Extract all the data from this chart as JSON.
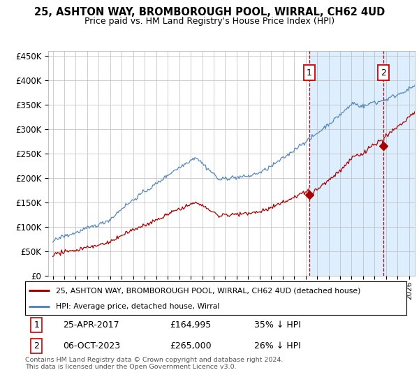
{
  "title": "25, ASHTON WAY, BROMBOROUGH POOL, WIRRAL, CH62 4UD",
  "subtitle": "Price paid vs. HM Land Registry's House Price Index (HPI)",
  "ylim": [
    0,
    460000
  ],
  "yticks": [
    0,
    50000,
    100000,
    150000,
    200000,
    250000,
    300000,
    350000,
    400000,
    450000
  ],
  "ytick_labels": [
    "£0",
    "£50K",
    "£100K",
    "£150K",
    "£200K",
    "£250K",
    "£300K",
    "£350K",
    "£400K",
    "£450K"
  ],
  "hpi_color": "#5588bb",
  "hpi_fill_color": "#ddeeff",
  "sale_color": "#aa0000",
  "dashed_color": "#cc0000",
  "marker1_date_x": 2017.32,
  "marker2_date_x": 2023.76,
  "sale1_price": 164995,
  "sale2_price": 265000,
  "legend_sale_label": "25, ASHTON WAY, BROMBOROUGH POOL, WIRRAL, CH62 4UD (detached house)",
  "legend_hpi_label": "HPI: Average price, detached house, Wirral",
  "table_row1": [
    "1",
    "25-APR-2017",
    "£164,995",
    "35% ↓ HPI"
  ],
  "table_row2": [
    "2",
    "06-OCT-2023",
    "£265,000",
    "26% ↓ HPI"
  ],
  "footer": "Contains HM Land Registry data © Crown copyright and database right 2024.\nThis data is licensed under the Open Government Licence v3.0.",
  "background_color": "#ffffff",
  "grid_color": "#bbbbbb",
  "xlim_left": 1994.6,
  "xlim_right": 2026.5
}
